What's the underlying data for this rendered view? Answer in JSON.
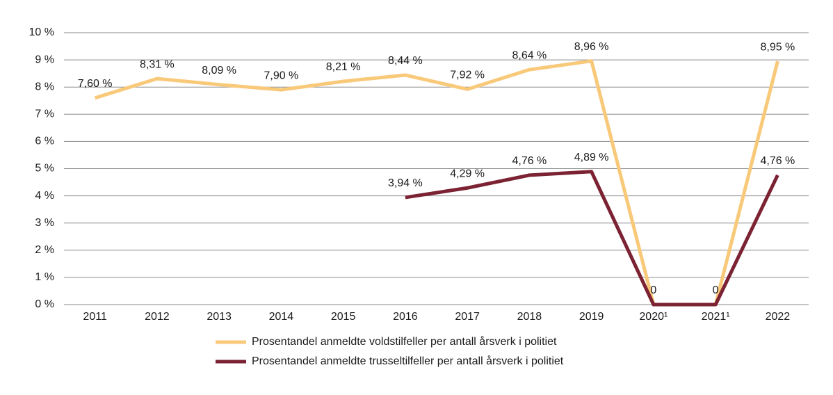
{
  "chart_data": {
    "type": "line",
    "categories": [
      "2011",
      "2012",
      "2013",
      "2014",
      "2015",
      "2016",
      "2017",
      "2018",
      "2019",
      "2020¹",
      "2021¹",
      "2022"
    ],
    "series": [
      {
        "name": "Prosentandel anmeldte voldstilfeller per antall årsverk i politiet",
        "color": "#f9c97a",
        "values": [
          7.6,
          8.31,
          8.09,
          7.9,
          8.21,
          8.44,
          7.92,
          8.64,
          8.96,
          0,
          0,
          8.95
        ],
        "value_labels": [
          "7,60 %",
          "8,31 %",
          "8,09 %",
          "7,90 %",
          "8,21 %",
          "8,44 %",
          "7,92 %",
          "8,64 %",
          "8,96 %",
          "0",
          "0",
          "8,95 %"
        ]
      },
      {
        "name": "Prosentandel anmeldte trusseltilfeller per antall årsverk i politiet",
        "color": "#7b2233",
        "values": [
          null,
          null,
          null,
          null,
          null,
          3.94,
          4.29,
          4.76,
          4.89,
          0,
          0,
          4.76
        ],
        "value_labels": [
          null,
          null,
          null,
          null,
          null,
          "3,94 %",
          "4,29 %",
          "4,76 %",
          "4,89 %",
          null,
          null,
          "4,76 %"
        ]
      }
    ],
    "ylim": [
      0,
      10
    ],
    "yticks": [
      {
        "value": 0,
        "label": "0 %"
      },
      {
        "value": 1,
        "label": "1 %"
      },
      {
        "value": 2,
        "label": "2 %"
      },
      {
        "value": 3,
        "label": "3 %"
      },
      {
        "value": 4,
        "label": "4 %"
      },
      {
        "value": 5,
        "label": "5 %"
      },
      {
        "value": 6,
        "label": "6 %"
      },
      {
        "value": 7,
        "label": "7 %"
      },
      {
        "value": 8,
        "label": "8 %"
      },
      {
        "value": 9,
        "label": "9 %"
      },
      {
        "value": 10,
        "label": "10 %"
      }
    ],
    "grid": true,
    "legend": "bottom"
  }
}
